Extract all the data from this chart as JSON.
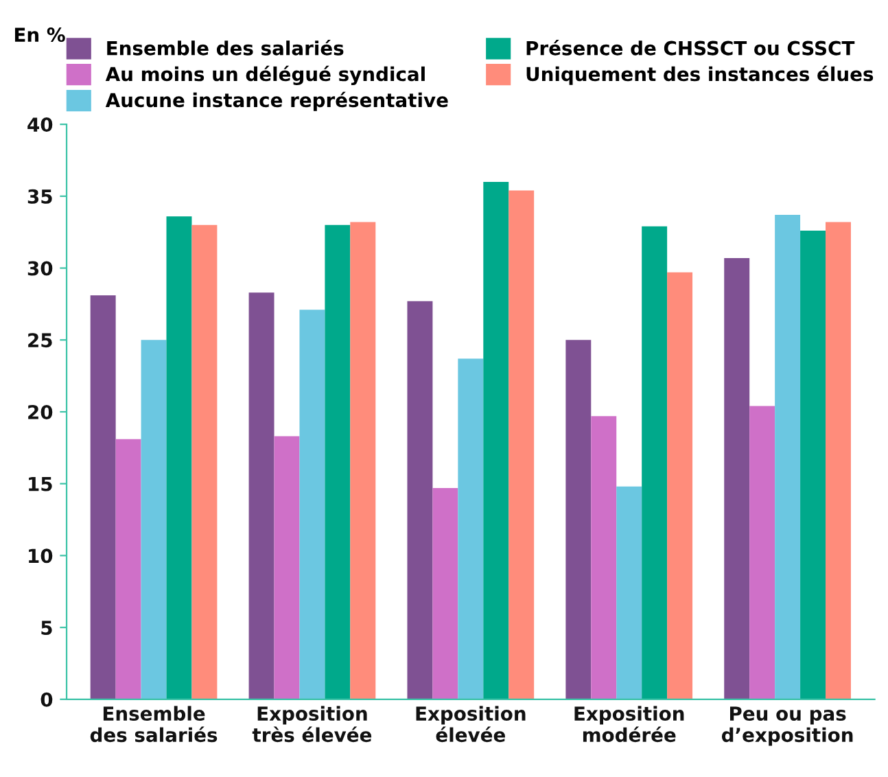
{
  "chart_data": {
    "type": "bar",
    "ylabel": "En %",
    "categories": [
      "Ensemble\ndes salariés",
      "Exposition\ntrès élevée",
      "Exposition\nélevée",
      "Exposition\nmodérée",
      "Peu ou pas\nd’exposition"
    ],
    "series": [
      {
        "name": "Ensemble des salariés",
        "color": "#7f5193",
        "values": [
          28.1,
          28.3,
          27.7,
          25.0,
          30.7
        ]
      },
      {
        "name": "Au moins un délégué syndical",
        "color": "#cf70c8",
        "values": [
          18.1,
          18.3,
          14.7,
          19.7,
          20.4
        ]
      },
      {
        "name": "Aucune instance représentative",
        "color": "#6bc7e1",
        "values": [
          25.0,
          27.1,
          23.7,
          14.8,
          33.7
        ]
      },
      {
        "name": "Présence de CHSSCT ou CSSCT",
        "color": "#00a98b",
        "values": [
          33.6,
          33.0,
          36.0,
          32.9,
          32.6
        ]
      },
      {
        "name": "Uniquement des instances élues",
        "color": "#ff8c7b",
        "values": [
          33.0,
          33.2,
          35.4,
          29.7,
          33.2
        ]
      }
    ],
    "ylim": [
      0,
      40
    ],
    "yticks": [
      0,
      5,
      10,
      15,
      20,
      25,
      30,
      35,
      40
    ],
    "grid": false,
    "legend": "top"
  }
}
